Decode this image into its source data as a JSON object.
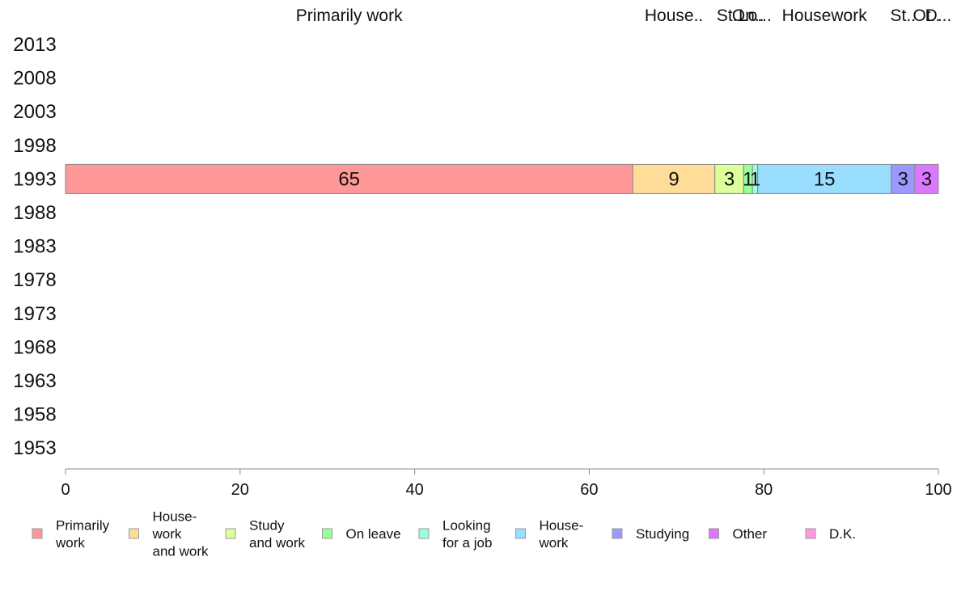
{
  "chart_data": {
    "type": "bar",
    "orientation": "horizontal",
    "stacked": true,
    "categories": [
      "2013",
      "2008",
      "2003",
      "1998",
      "1993",
      "1988",
      "1983",
      "1978",
      "1973",
      "1968",
      "1963",
      "1958",
      "1953"
    ],
    "xlim": [
      0,
      100
    ],
    "xticks": [
      0,
      20,
      40,
      60,
      80,
      100
    ],
    "xtick_labels": [
      "0",
      "20",
      "40",
      "60",
      "80",
      "100"
    ],
    "grid": false,
    "legend_position": "bottom",
    "top_labels": [
      "Primarily work",
      "House..",
      "St..",
      "Lo...",
      "On..",
      "Housework",
      "St..",
      "Ot..",
      "D..."
    ],
    "series": [
      {
        "name": "Primarily work",
        "legend_label": [
          "Primarily",
          "work"
        ],
        "color": "#ff9999",
        "values": [
          null,
          null,
          null,
          null,
          65,
          null,
          null,
          null,
          null,
          null,
          null,
          null,
          null
        ],
        "labels": [
          null,
          null,
          null,
          null,
          "65",
          null,
          null,
          null,
          null,
          null,
          null,
          null,
          null
        ]
      },
      {
        "name": "House-work and work",
        "legend_label": [
          "House-",
          "work",
          "and work"
        ],
        "color": "#ffdd99",
        "values": [
          null,
          null,
          null,
          null,
          9.4,
          null,
          null,
          null,
          null,
          null,
          null,
          null,
          null
        ],
        "labels": [
          null,
          null,
          null,
          null,
          "9",
          null,
          null,
          null,
          null,
          null,
          null,
          null,
          null
        ]
      },
      {
        "name": "Study and work",
        "legend_label": [
          "Study",
          "and work"
        ],
        "color": "#ddff99",
        "values": [
          null,
          null,
          null,
          null,
          3.3,
          null,
          null,
          null,
          null,
          null,
          null,
          null,
          null
        ],
        "labels": [
          null,
          null,
          null,
          null,
          "3",
          null,
          null,
          null,
          null,
          null,
          null,
          null,
          null
        ]
      },
      {
        "name": "On leave",
        "legend_label": [
          "On leave"
        ],
        "color": "#99ff99",
        "values": [
          null,
          null,
          null,
          null,
          1,
          null,
          null,
          null,
          null,
          null,
          null,
          null,
          null
        ],
        "labels": [
          null,
          null,
          null,
          null,
          "1",
          null,
          null,
          null,
          null,
          null,
          null,
          null,
          null
        ]
      },
      {
        "name": "Looking for a job",
        "legend_label": [
          "Looking",
          "for a job"
        ],
        "color": "#99ffdd",
        "values": [
          null,
          null,
          null,
          null,
          0.6,
          null,
          null,
          null,
          null,
          null,
          null,
          null,
          null
        ],
        "labels": [
          null,
          null,
          null,
          null,
          "1",
          null,
          null,
          null,
          null,
          null,
          null,
          null,
          null
        ]
      },
      {
        "name": "House-work",
        "legend_label": [
          "House-",
          "work"
        ],
        "color": "#99ddff",
        "values": [
          null,
          null,
          null,
          null,
          15.3,
          null,
          null,
          null,
          null,
          null,
          null,
          null,
          null
        ],
        "labels": [
          null,
          null,
          null,
          null,
          "15",
          null,
          null,
          null,
          null,
          null,
          null,
          null,
          null
        ]
      },
      {
        "name": "Studying",
        "legend_label": [
          "Studying"
        ],
        "color": "#9999ff",
        "values": [
          null,
          null,
          null,
          null,
          2.7,
          null,
          null,
          null,
          null,
          null,
          null,
          null,
          null
        ],
        "labels": [
          null,
          null,
          null,
          null,
          "3",
          null,
          null,
          null,
          null,
          null,
          null,
          null,
          null
        ]
      },
      {
        "name": "Other",
        "legend_label": [
          "Other"
        ],
        "color": "#dd77ff",
        "values": [
          null,
          null,
          null,
          null,
          2.7,
          null,
          null,
          null,
          null,
          null,
          null,
          null,
          null
        ],
        "labels": [
          null,
          null,
          null,
          null,
          "3",
          null,
          null,
          null,
          null,
          null,
          null,
          null,
          null
        ]
      },
      {
        "name": "D.K.",
        "legend_label": [
          "D.K."
        ],
        "color": "#ff99dd",
        "values": [
          null,
          null,
          null,
          null,
          0,
          null,
          null,
          null,
          null,
          null,
          null,
          null,
          null
        ],
        "labels": [
          null,
          null,
          null,
          null,
          null,
          null,
          null,
          null,
          null,
          null,
          null,
          null,
          null
        ]
      }
    ]
  }
}
